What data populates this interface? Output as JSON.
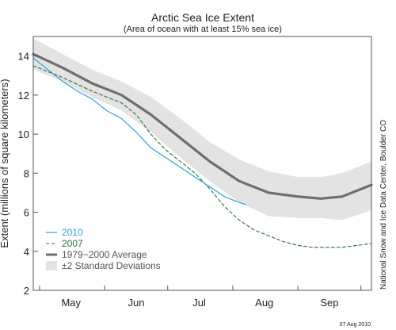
{
  "chart_data": {
    "type": "line",
    "title": "Arctic Sea Ice Extent",
    "subtitle": "(Area of ocean with at least 15% sea ice)",
    "ylabel": "Extent (millions of square kilometers)",
    "xlabel": "",
    "credit": "National Snow and Ice Data Center, Boulder CO",
    "date_stamp": "07 Aug 2010",
    "x_ticks": [
      "May",
      "Jun",
      "Jul",
      "Aug",
      "Sep"
    ],
    "y_ticks": [
      2,
      4,
      6,
      8,
      10,
      12,
      14
    ],
    "ylim": [
      2,
      15
    ],
    "grid": false,
    "legend_position": "bottom-left",
    "colors": {
      "s2010": "#2aa2dd",
      "s2007": "#2f6e36",
      "avg": "#6e6e6e",
      "band": "#e3e3e3"
    },
    "series": [
      {
        "name": "2010",
        "style": "solid",
        "x": [
          "Apr 28",
          "May 5",
          "May 12",
          "May 19",
          "May 26",
          "Jun 2",
          "Jun 9",
          "Jun 16",
          "Jun 23",
          "Jun 30",
          "Jul 7",
          "Jul 14",
          "Jul 21",
          "Jul 28",
          "Aug 4",
          "Aug 7"
        ],
        "values": [
          13.9,
          13.3,
          12.7,
          12.2,
          11.8,
          11.2,
          10.8,
          10.1,
          9.3,
          8.8,
          8.3,
          7.8,
          7.3,
          6.8,
          6.5,
          6.4
        ]
      },
      {
        "name": "2007",
        "style": "dashed",
        "x": [
          "Apr 28",
          "May 12",
          "May 26",
          "Jun 9",
          "Jun 16",
          "Jun 23",
          "Jun 30",
          "Jul 7",
          "Jul 14",
          "Jul 21",
          "Jul 28",
          "Aug 4",
          "Aug 11",
          "Aug 18",
          "Aug 25",
          "Sep 1",
          "Sep 8",
          "Sep 15",
          "Sep 22",
          "Sep 29",
          "Oct 6"
        ],
        "values": [
          13.5,
          12.9,
          12.2,
          11.6,
          11.0,
          10.0,
          9.2,
          8.6,
          8.0,
          7.2,
          6.3,
          5.6,
          5.1,
          4.8,
          4.5,
          4.3,
          4.2,
          4.2,
          4.2,
          4.3,
          4.4
        ]
      },
      {
        "name": "1979−2000 Average",
        "style": "solid-thick",
        "x": [
          "Apr 28",
          "May 12",
          "May 26",
          "Jun 9",
          "Jun 23",
          "Jul 7",
          "Jul 21",
          "Aug 4",
          "Aug 18",
          "Sep 1",
          "Sep 12",
          "Sep 22",
          "Oct 6"
        ],
        "values": [
          14.1,
          13.4,
          12.6,
          12.0,
          11.0,
          9.8,
          8.6,
          7.6,
          7.0,
          6.8,
          6.7,
          6.8,
          7.4
        ]
      }
    ],
    "band": {
      "name": "±2 Standard Deviations",
      "x": [
        "Apr 28",
        "May 12",
        "May 26",
        "Jun 9",
        "Jun 23",
        "Jul 7",
        "Jul 21",
        "Aug 4",
        "Aug 18",
        "Sep 1",
        "Sep 12",
        "Sep 22",
        "Oct 6"
      ],
      "upper": [
        14.9,
        14.1,
        13.3,
        12.7,
        11.9,
        10.8,
        9.6,
        8.7,
        8.1,
        7.8,
        7.8,
        8.0,
        8.6
      ],
      "lower": [
        13.3,
        12.7,
        11.9,
        11.2,
        10.1,
        8.8,
        7.6,
        6.5,
        5.8,
        5.7,
        5.7,
        5.6,
        6.1
      ]
    }
  }
}
